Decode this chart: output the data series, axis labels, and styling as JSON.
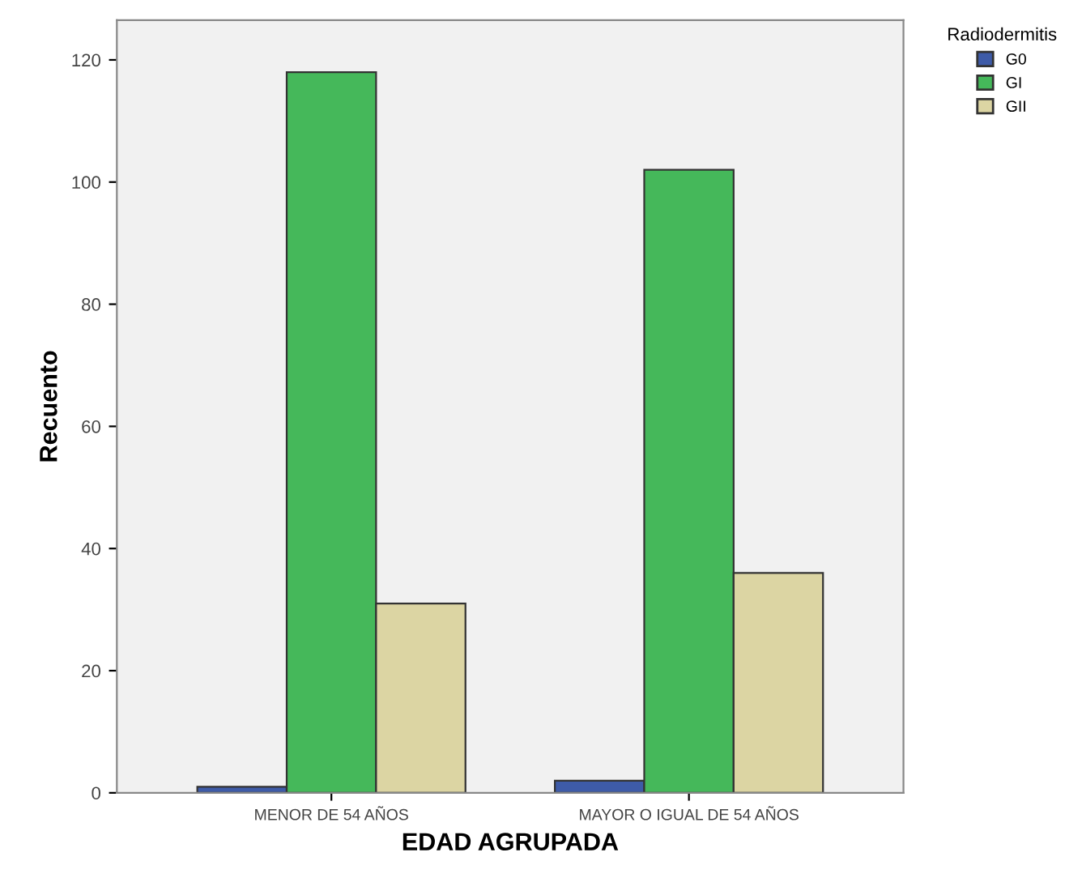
{
  "chart_data": {
    "type": "bar",
    "xlabel": "EDAD AGRUPADA",
    "ylabel": "Recuento",
    "legend_title": "Radiodermitis",
    "categories": [
      "MENOR DE 54 AÑOS",
      "MAYOR O IGUAL DE 54 AÑOS"
    ],
    "series": [
      {
        "name": "G0",
        "color": "#3e5ba8",
        "values": [
          1,
          2
        ]
      },
      {
        "name": "GI",
        "color": "#45b85a",
        "values": [
          118,
          102
        ]
      },
      {
        "name": "GII",
        "color": "#dcd5a3",
        "values": [
          31,
          36
        ]
      }
    ],
    "ylim": [
      0,
      126.5
    ],
    "yticks": [
      0,
      20,
      40,
      60,
      80,
      100,
      120
    ],
    "grid": false,
    "legend": "top right"
  }
}
